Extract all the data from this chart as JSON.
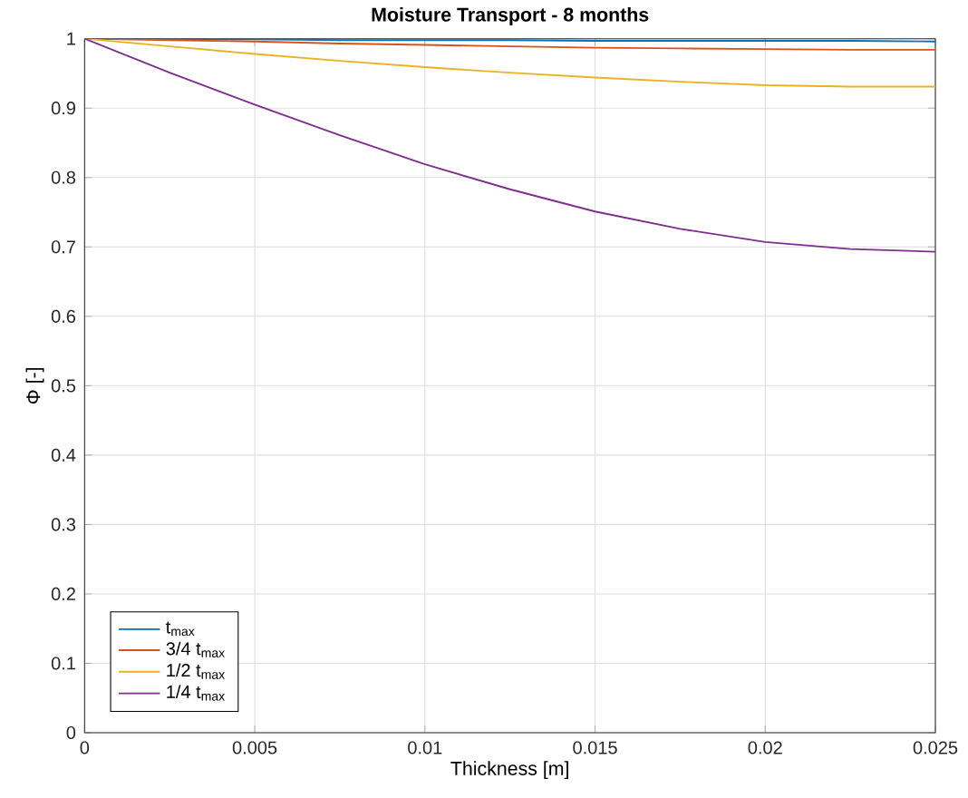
{
  "chart_data": {
    "type": "line",
    "title": "Moisture Transport - 8 months",
    "xlabel": "Thickness [m]",
    "ylabel": "Φ [-]",
    "x": [
      0,
      0.0025,
      0.005,
      0.0075,
      0.01,
      0.0125,
      0.015,
      0.0175,
      0.02,
      0.0225,
      0.025
    ],
    "series": [
      {
        "name": "t$_{max}$",
        "color": "#0072bd",
        "values": [
          1,
          0.999,
          0.999,
          0.998,
          0.998,
          0.998,
          0.997,
          0.997,
          0.997,
          0.997,
          0.996
        ]
      },
      {
        "name": "3/4 t$_{max}$",
        "color": "#d95319",
        "values": [
          1,
          0.998,
          0.996,
          0.993,
          0.991,
          0.989,
          0.987,
          0.986,
          0.985,
          0.984,
          0.984
        ]
      },
      {
        "name": "1/2 t$_{max}$",
        "color": "#edb120",
        "values": [
          1,
          0.989,
          0.978,
          0.968,
          0.959,
          0.951,
          0.944,
          0.938,
          0.933,
          0.931,
          0.931
        ]
      },
      {
        "name": "1/4 t$_{max}$",
        "color": "#7e2f8e",
        "values": [
          1,
          0.951,
          0.905,
          0.861,
          0.819,
          0.783,
          0.751,
          0.726,
          0.707,
          0.697,
          0.693
        ]
      }
    ],
    "xlim": [
      0,
      0.025
    ],
    "ylim": [
      0,
      1
    ],
    "xticks": [
      0,
      0.005,
      0.01,
      0.015,
      0.02,
      0.025
    ],
    "yticks": [
      0,
      0.1,
      0.2,
      0.3,
      0.4,
      0.5,
      0.6,
      0.7,
      0.8,
      0.9,
      1
    ],
    "grid": true,
    "legend": "bottom left",
    "marker": "none",
    "line_style": "solid"
  }
}
